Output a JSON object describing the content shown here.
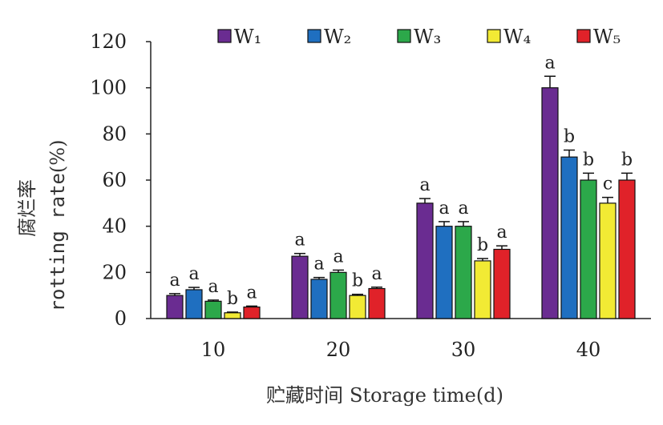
{
  "chart_data": {
    "type": "bar",
    "categories": [
      "10",
      "20",
      "30",
      "40"
    ],
    "series": [
      {
        "name": "W₁",
        "color": "#6a2c91",
        "values": [
          10,
          27,
          50,
          100
        ],
        "errors": [
          0.8,
          1.2,
          2.0,
          5.0
        ],
        "sig": [
          "a",
          "a",
          "a",
          "a"
        ]
      },
      {
        "name": "W₂",
        "color": "#1f6fc0",
        "values": [
          12.5,
          17,
          40,
          70
        ],
        "errors": [
          1.0,
          0.8,
          2.0,
          3.0
        ],
        "sig": [
          "a",
          "a",
          "a",
          "b"
        ]
      },
      {
        "name": "W₃",
        "color": "#2ca84a",
        "values": [
          7.5,
          20,
          40,
          60
        ],
        "errors": [
          0.5,
          1.0,
          2.0,
          3.0
        ],
        "sig": [
          "a",
          "a",
          "a",
          "b"
        ]
      },
      {
        "name": "W₄",
        "color": "#f2ea34",
        "values": [
          2.5,
          10,
          25,
          50
        ],
        "errors": [
          0.3,
          0.5,
          1.0,
          2.5
        ],
        "sig": [
          "b",
          "b",
          "b",
          "c"
        ]
      },
      {
        "name": "W₅",
        "color": "#e02229",
        "values": [
          5,
          13,
          30,
          60
        ],
        "errors": [
          0.4,
          0.6,
          1.5,
          3.0
        ],
        "sig": [
          "a",
          "a",
          "a",
          "b"
        ]
      }
    ],
    "xlabel_cn": "贮藏时间",
    "xlabel_en": "Storage time(d)",
    "ylabel_cn": "腐烂率",
    "ylabel_en": "rotting rate",
    "ylabel_unit": "(%)",
    "yticks": [
      "0",
      "20",
      "40",
      "60",
      "80",
      "100",
      "120"
    ],
    "ylim": [
      0,
      120
    ],
    "legend_position": "top",
    "grid": false
  }
}
